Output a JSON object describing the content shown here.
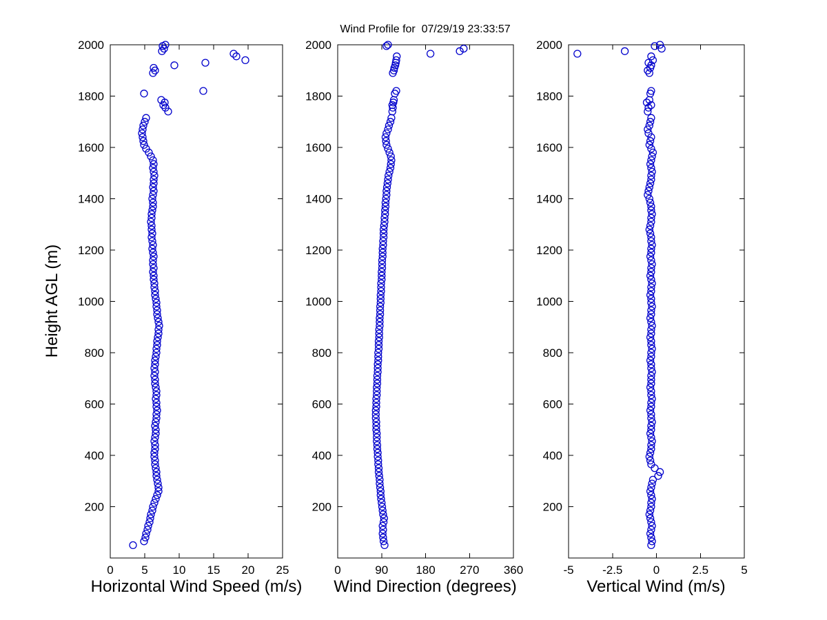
{
  "chart_data": {
    "type": "scatter",
    "title": "Wind Profile for  07/29/19 23:33:57",
    "ylabel": "Height AGL (m)",
    "ylim": [
      0,
      2000
    ],
    "yticks": [
      200,
      400,
      600,
      800,
      1000,
      1200,
      1400,
      1600,
      1800,
      2000
    ],
    "grid": false,
    "legend": "none",
    "marker": {
      "shape": "open-circle",
      "color": "#0000CC",
      "radius": 5
    },
    "heights_m": [
      50,
      65,
      80,
      95,
      110,
      125,
      140,
      155,
      170,
      185,
      200,
      215,
      230,
      245,
      260,
      275,
      290,
      305,
      320,
      335,
      350,
      365,
      380,
      395,
      410,
      425,
      440,
      455,
      470,
      485,
      500,
      515,
      530,
      545,
      560,
      575,
      590,
      605,
      620,
      635,
      650,
      665,
      680,
      695,
      710,
      725,
      740,
      755,
      770,
      785,
      800,
      815,
      830,
      845,
      860,
      875,
      890,
      905,
      920,
      935,
      950,
      965,
      980,
      995,
      1010,
      1025,
      1040,
      1055,
      1070,
      1085,
      1100,
      1115,
      1130,
      1145,
      1160,
      1175,
      1190,
      1205,
      1220,
      1235,
      1250,
      1265,
      1280,
      1295,
      1310,
      1325,
      1340,
      1355,
      1370,
      1385,
      1400,
      1415,
      1430,
      1445,
      1460,
      1475,
      1490,
      1505,
      1520,
      1535,
      1550,
      1565,
      1580,
      1595,
      1610,
      1625,
      1640,
      1655,
      1670,
      1685,
      1700,
      1715,
      1740,
      1755,
      1765,
      1775,
      1785,
      1810,
      1820,
      1890,
      1900,
      1910,
      1920,
      1930,
      1940,
      1955,
      1965,
      1975,
      1985,
      1995,
      2000
    ],
    "panels": [
      {
        "xlabel": "Horizontal Wind Speed (m/s)",
        "xlim": [
          0,
          25
        ],
        "xticks": [
          0,
          5,
          10,
          15,
          20,
          25
        ],
        "values": [
          3.3,
          4.9,
          5.1,
          5.2,
          5.4,
          5.5,
          5.7,
          5.8,
          5.9,
          6.1,
          6.2,
          6.4,
          6.6,
          6.8,
          7.0,
          7.0,
          6.9,
          6.8,
          6.7,
          6.7,
          6.6,
          6.5,
          6.5,
          6.4,
          6.4,
          6.5,
          6.5,
          6.4,
          6.5,
          6.6,
          6.6,
          6.5,
          6.6,
          6.7,
          6.7,
          6.8,
          6.7,
          6.7,
          6.6,
          6.7,
          6.7,
          6.6,
          6.5,
          6.5,
          6.4,
          6.5,
          6.4,
          6.5,
          6.5,
          6.6,
          6.7,
          6.7,
          6.8,
          6.8,
          6.9,
          7.0,
          7.0,
          7.1,
          7.0,
          6.9,
          6.8,
          6.8,
          6.7,
          6.7,
          6.6,
          6.5,
          6.5,
          6.4,
          6.4,
          6.3,
          6.3,
          6.2,
          6.3,
          6.2,
          6.2,
          6.3,
          6.2,
          6.1,
          6.2,
          6.1,
          6.0,
          6.1,
          6.0,
          6.0,
          5.9,
          6.0,
          6.0,
          6.1,
          6.2,
          6.2,
          6.1,
          6.2,
          6.3,
          6.2,
          6.3,
          6.3,
          6.4,
          6.3,
          6.2,
          6.3,
          6.2,
          5.9,
          5.6,
          5.2,
          4.9,
          4.8,
          4.7,
          4.6,
          4.7,
          4.8,
          5.0,
          5.2,
          8.4,
          8.0,
          7.7,
          7.9,
          7.4,
          4.9,
          13.5,
          6.2,
          6.5,
          6.3,
          9.3,
          13.8,
          19.6,
          18.3,
          17.9,
          7.5,
          7.8,
          7.6,
          8.0
        ]
      },
      {
        "xlabel": "Wind Direction (degrees)",
        "xlim": [
          0,
          360
        ],
        "xticks": [
          0,
          90,
          180,
          270,
          360
        ],
        "values": [
          96,
          94,
          93,
          92,
          93,
          92,
          94,
          95,
          93,
          92,
          91,
          90,
          89,
          88,
          88,
          87,
          86,
          86,
          85,
          84,
          84,
          83,
          83,
          82,
          82,
          81,
          81,
          80,
          80,
          80,
          79,
          79,
          79,
          78,
          78,
          78,
          79,
          79,
          79,
          80,
          80,
          80,
          81,
          81,
          81,
          82,
          82,
          82,
          83,
          83,
          83,
          84,
          84,
          84,
          85,
          85,
          85,
          86,
          86,
          86,
          87,
          87,
          87,
          88,
          88,
          88,
          89,
          89,
          89,
          90,
          90,
          90,
          91,
          91,
          91,
          92,
          92,
          92,
          93,
          93,
          94,
          94,
          94,
          95,
          96,
          96,
          97,
          97,
          98,
          98,
          99,
          100,
          100,
          101,
          102,
          103,
          104,
          106,
          108,
          109,
          110,
          109,
          106,
          103,
          100,
          99,
          98,
          100,
          103,
          105,
          108,
          110,
          112,
          113,
          112,
          114,
          115,
          117,
          120,
          113,
          115,
          116,
          118,
          119,
          120,
          121,
          190,
          250,
          258,
          100,
          103
        ]
      },
      {
        "xlabel": "Vertical Wind (m/s)",
        "xlim": [
          -5,
          5
        ],
        "xticks": [
          -5,
          -2.5,
          0,
          2.5,
          5
        ],
        "values": [
          -0.3,
          -0.25,
          -0.3,
          -0.35,
          -0.3,
          -0.25,
          -0.3,
          -0.35,
          -0.4,
          -0.35,
          -0.3,
          -0.3,
          -0.25,
          -0.3,
          -0.35,
          -0.3,
          -0.25,
          -0.2,
          0.1,
          0.2,
          -0.1,
          -0.3,
          -0.35,
          -0.4,
          -0.35,
          -0.3,
          -0.3,
          -0.25,
          -0.3,
          -0.35,
          -0.3,
          -0.3,
          -0.25,
          -0.3,
          -0.3,
          -0.35,
          -0.3,
          -0.3,
          -0.25,
          -0.3,
          -0.3,
          -0.35,
          -0.3,
          -0.3,
          -0.3,
          -0.25,
          -0.3,
          -0.3,
          -0.35,
          -0.3,
          -0.3,
          -0.25,
          -0.3,
          -0.3,
          -0.35,
          -0.3,
          -0.3,
          -0.25,
          -0.3,
          -0.35,
          -0.3,
          -0.3,
          -0.25,
          -0.3,
          -0.3,
          -0.35,
          -0.3,
          -0.3,
          -0.25,
          -0.3,
          -0.35,
          -0.3,
          -0.3,
          -0.25,
          -0.3,
          -0.35,
          -0.3,
          -0.3,
          -0.25,
          -0.3,
          -0.3,
          -0.35,
          -0.4,
          -0.35,
          -0.3,
          -0.3,
          -0.25,
          -0.3,
          -0.3,
          -0.35,
          -0.4,
          -0.5,
          -0.45,
          -0.4,
          -0.35,
          -0.3,
          -0.3,
          -0.25,
          -0.3,
          -0.35,
          -0.3,
          -0.25,
          -0.2,
          -0.3,
          -0.4,
          -0.35,
          -0.3,
          -0.45,
          -0.5,
          -0.4,
          -0.35,
          -0.3,
          -0.5,
          -0.45,
          -0.3,
          -0.55,
          -0.4,
          -0.35,
          -0.3,
          -0.4,
          -0.5,
          -0.35,
          -0.3,
          -0.45,
          -0.2,
          -0.3,
          -4.5,
          -1.8,
          0.3,
          -0.1,
          0.2
        ]
      }
    ]
  }
}
